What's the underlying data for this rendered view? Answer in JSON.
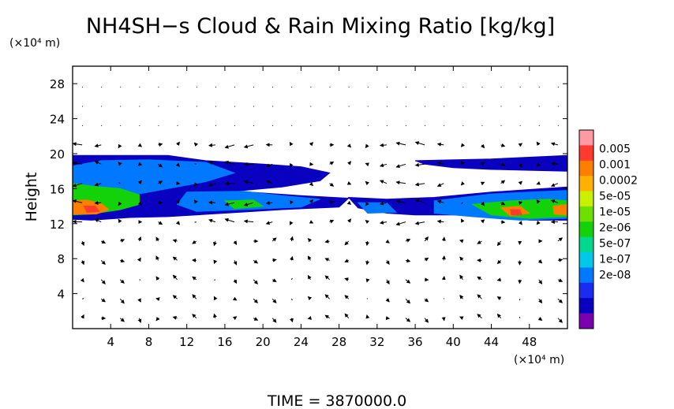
{
  "chart_data": {
    "type": "heatmap",
    "title": "NH4SH−s Cloud & Rain Mixing Ratio [kg/kg]",
    "xlabel": "(×10⁴ m)",
    "ylabel": "Height",
    "yunit": "(×10⁴ m)",
    "footer": "TIME  =  3870000.0",
    "xlim": [
      0,
      52
    ],
    "ylim": [
      0,
      30
    ],
    "xticks": [
      4,
      8,
      12,
      16,
      20,
      24,
      28,
      32,
      36,
      40,
      44,
      48
    ],
    "yticks": [
      4,
      8,
      12,
      16,
      20,
      24,
      28
    ],
    "colorbar": {
      "labels": [
        "0.005",
        "0.001",
        "0.0002",
        "5e-05",
        "1e-05",
        "2e-06",
        "5e-07",
        "1e-07",
        "2e-08"
      ],
      "colors": [
        "#ff9aa2",
        "#ff3b30",
        "#ff7e00",
        "#ffb000",
        "#c8f000",
        "#6ee000",
        "#14d20a",
        "#00d890",
        "#00c8e8",
        "#0078ff",
        "#1a2cf0",
        "#0a00c0",
        "#7a00b0"
      ]
    },
    "layers": [
      {
        "name": "upper cloud deck",
        "level": 1,
        "points": [
          [
            0,
            19.8
          ],
          [
            10,
            19.8
          ],
          [
            14,
            19.2
          ],
          [
            20,
            18.8
          ],
          [
            24,
            18.5
          ],
          [
            27,
            17.8
          ],
          [
            26,
            16.9
          ],
          [
            22,
            16.2
          ],
          [
            16,
            15.6
          ],
          [
            10,
            15.4
          ],
          [
            4,
            15.0
          ],
          [
            0,
            14.6
          ]
        ]
      },
      {
        "name": "lower cloud deck",
        "level": 1,
        "points": [
          [
            0,
            16.4
          ],
          [
            4,
            16.6
          ],
          [
            10,
            16.5
          ],
          [
            16,
            15.8
          ],
          [
            24,
            15.2
          ],
          [
            29,
            14.9
          ],
          [
            28,
            13.9
          ],
          [
            22,
            13.6
          ],
          [
            16,
            13.2
          ],
          [
            10,
            12.8
          ],
          [
            6,
            12.7
          ],
          [
            2,
            12.4
          ],
          [
            0,
            12.5
          ]
        ]
      },
      {
        "name": "right cloud deck",
        "level": 1,
        "points": [
          [
            29,
            15.0
          ],
          [
            33,
            14.8
          ],
          [
            38,
            15.0
          ],
          [
            44,
            15.6
          ],
          [
            48,
            15.9
          ],
          [
            52,
            16.2
          ],
          [
            52,
            12.4
          ],
          [
            48,
            12.4
          ],
          [
            44,
            12.8
          ],
          [
            40,
            13.0
          ],
          [
            36,
            13.0
          ],
          [
            33,
            13.2
          ],
          [
            30,
            13.8
          ]
        ]
      },
      {
        "name": "top-right cloud",
        "level": 1,
        "points": [
          [
            36,
            19.2
          ],
          [
            44,
            19.4
          ],
          [
            52,
            19.8
          ],
          [
            52,
            18.0
          ],
          [
            48,
            18.1
          ],
          [
            44,
            18.2
          ],
          [
            40,
            18.4
          ],
          [
            37,
            18.8
          ]
        ]
      },
      {
        "name": "left core blue",
        "level": 3,
        "points": [
          [
            0,
            18.6
          ],
          [
            3,
            19.2
          ],
          [
            8,
            19.3
          ],
          [
            14,
            19.0
          ],
          [
            17,
            17.8
          ],
          [
            14,
            16.8
          ],
          [
            10,
            16.0
          ],
          [
            6,
            15.2
          ],
          [
            3,
            14.4
          ],
          [
            0,
            14.0
          ]
        ]
      },
      {
        "name": "left core green",
        "level": 6,
        "points": [
          [
            0,
            16.6
          ],
          [
            2,
            16.3
          ],
          [
            5,
            16.0
          ],
          [
            7,
            15.3
          ],
          [
            7,
            14.2
          ],
          [
            5,
            13.6
          ],
          [
            2,
            13.1
          ],
          [
            0,
            13.0
          ]
        ]
      },
      {
        "name": "left core orange",
        "level": 10,
        "points": [
          [
            0,
            14.6
          ],
          [
            1.5,
            14.7
          ],
          [
            3,
            14.3
          ],
          [
            3.8,
            13.6
          ],
          [
            2.5,
            13.1
          ],
          [
            0,
            13.1
          ]
        ]
      },
      {
        "name": "left core red",
        "level": 11,
        "points": [
          [
            1.2,
            14.0
          ],
          [
            2.4,
            14.0
          ],
          [
            2.8,
            13.4
          ],
          [
            1.5,
            13.3
          ]
        ]
      },
      {
        "name": "mid lower blue",
        "level": 3,
        "points": [
          [
            12,
            15.6
          ],
          [
            18,
            15.7
          ],
          [
            22,
            15.2
          ],
          [
            26,
            14.8
          ],
          [
            24,
            13.9
          ],
          [
            18,
            13.6
          ],
          [
            13,
            13.4
          ],
          [
            11,
            14.2
          ]
        ]
      },
      {
        "name": "mid lower green",
        "level": 6,
        "points": [
          [
            16,
            14.6
          ],
          [
            19,
            14.7
          ],
          [
            20,
            14.0
          ],
          [
            17,
            13.7
          ]
        ]
      },
      {
        "name": "right core blue",
        "level": 3,
        "points": [
          [
            30,
            14.4
          ],
          [
            33,
            14.4
          ],
          [
            34,
            13.3
          ],
          [
            31,
            13.2
          ]
        ]
      },
      {
        "name": "right core blue 2",
        "level": 3,
        "points": [
          [
            38,
            14.6
          ],
          [
            44,
            15.4
          ],
          [
            48,
            15.6
          ],
          [
            52,
            15.8
          ],
          [
            52,
            12.6
          ],
          [
            47,
            12.4
          ],
          [
            42,
            12.8
          ],
          [
            38,
            13.2
          ]
        ]
      },
      {
        "name": "right core green",
        "level": 6,
        "points": [
          [
            42,
            14.2
          ],
          [
            46,
            14.6
          ],
          [
            50,
            14.8
          ],
          [
            52,
            14.6
          ],
          [
            52,
            12.8
          ],
          [
            48,
            12.6
          ],
          [
            44,
            13.0
          ]
        ]
      },
      {
        "name": "right core orange",
        "level": 10,
        "points": [
          [
            45,
            13.8
          ],
          [
            47,
            14.0
          ],
          [
            48,
            13.2
          ],
          [
            46,
            12.9
          ]
        ]
      },
      {
        "name": "right core orange 2",
        "level": 10,
        "points": [
          [
            50.5,
            14.0
          ],
          [
            52,
            14.2
          ],
          [
            52,
            13.0
          ],
          [
            50.6,
            13.1
          ]
        ]
      },
      {
        "name": "right core red",
        "level": 11,
        "points": [
          [
            46,
            13.6
          ],
          [
            47,
            13.6
          ],
          [
            47.2,
            13.0
          ],
          [
            46.1,
            13.0
          ]
        ]
      }
    ]
  }
}
